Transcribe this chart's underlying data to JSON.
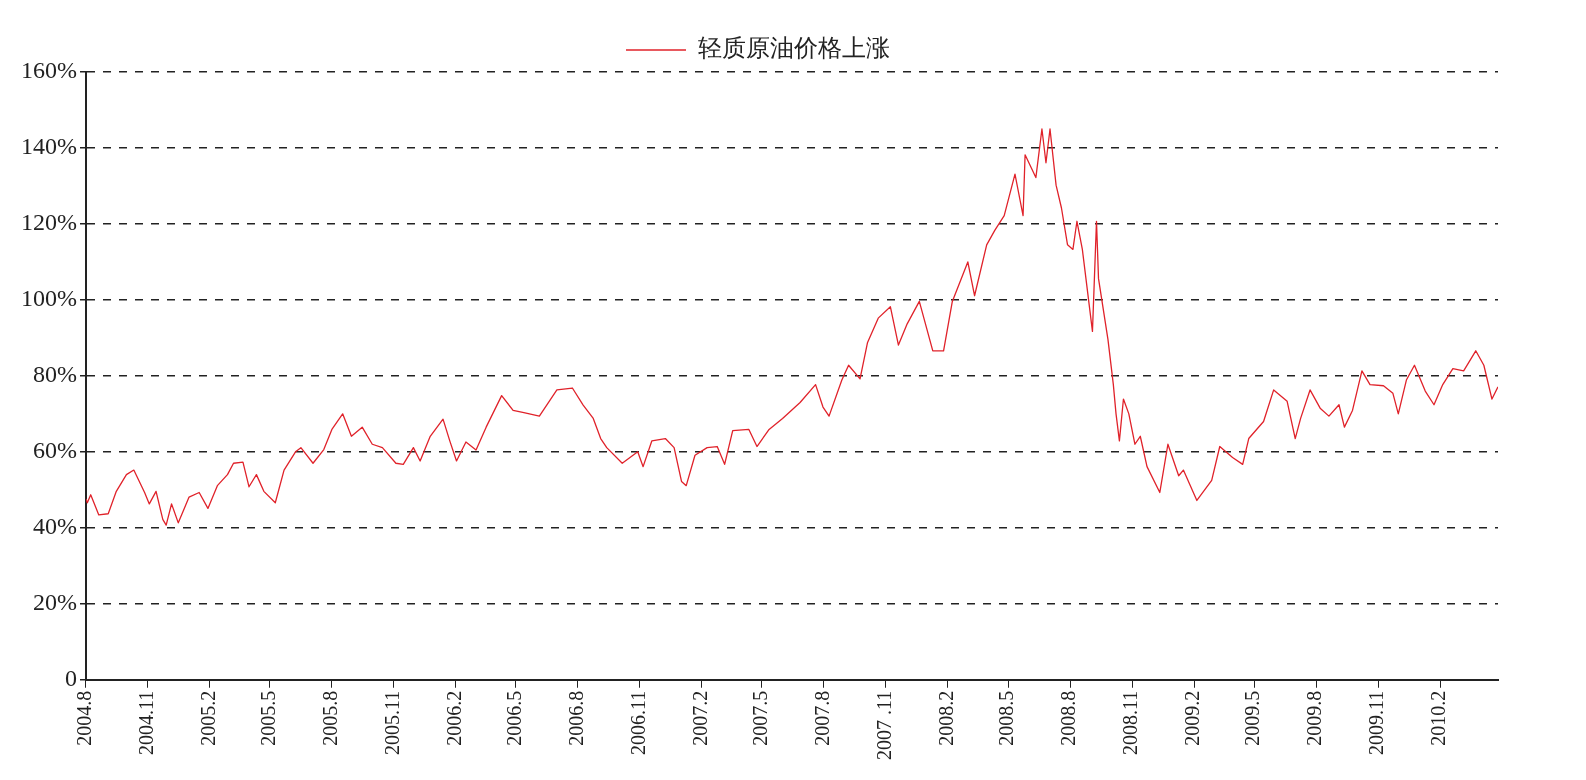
{
  "chart_data": {
    "type": "line",
    "x": [
      "2004-08-01",
      "2004-08-03",
      "2004-08-08",
      "2004-08-20",
      "2004-09-03",
      "2004-09-15",
      "2004-09-30",
      "2004-10-11",
      "2004-10-27",
      "2004-11-03",
      "2004-11-13",
      "2004-11-23",
      "2004-11-28",
      "2004-12-06",
      "2004-12-16",
      "2005-01-01",
      "2005-01-16",
      "2005-01-29",
      "2005-02-12",
      "2005-02-27",
      "2005-03-08",
      "2005-03-22",
      "2005-03-31",
      "2005-04-11",
      "2005-04-22",
      "2005-05-09",
      "2005-05-22",
      "2005-06-08",
      "2005-06-16",
      "2005-07-04",
      "2005-07-20",
      "2005-08-01",
      "2005-08-17",
      "2005-08-30",
      "2005-09-15",
      "2005-09-30",
      "2005-10-15",
      "2005-11-04",
      "2005-11-15",
      "2005-11-30",
      "2005-12-10",
      "2005-12-25",
      "2006-01-13",
      "2006-01-23",
      "2006-02-02",
      "2006-02-16",
      "2006-03-03",
      "2006-03-18",
      "2006-04-10",
      "2006-04-27",
      "2006-05-13",
      "2006-06-05",
      "2006-07-01",
      "2006-07-24",
      "2006-08-09",
      "2006-08-24",
      "2006-09-04",
      "2006-09-13",
      "2006-10-06",
      "2006-10-29",
      "2006-11-06",
      "2006-11-19",
      "2006-12-09",
      "2006-12-22",
      "2007-01-02",
      "2007-01-09",
      "2007-01-22",
      "2007-02-09",
      "2007-02-24",
      "2007-03-07",
      "2007-03-19",
      "2007-04-12",
      "2007-04-24",
      "2007-05-12",
      "2007-06-01",
      "2007-06-27",
      "2007-07-20",
      "2007-07-31",
      "2007-08-09",
      "2007-08-28",
      "2007-09-07",
      "2007-09-24",
      "2007-10-05",
      "2007-10-21",
      "2007-11-08",
      "2007-11-20",
      "2007-12-03",
      "2007-12-21",
      "2008-01-10",
      "2008-01-26",
      "2008-02-08",
      "2008-03-02",
      "2008-03-12",
      "2008-03-30",
      "2008-04-11",
      "2008-04-25",
      "2008-05-11",
      "2008-05-23",
      "2008-05-26",
      "2008-06-11",
      "2008-06-20",
      "2008-06-26",
      "2008-07-02",
      "2008-07-11",
      "2008-07-19",
      "2008-07-28",
      "2008-08-05",
      "2008-08-11",
      "2008-08-19",
      "2008-09-03",
      "2008-09-09",
      "2008-09-12",
      "2008-09-26",
      "2008-10-04",
      "2008-10-08",
      "2008-10-13",
      "2008-10-19",
      "2008-10-27",
      "2008-11-05",
      "2008-11-13",
      "2008-11-23",
      "2008-12-12",
      "2008-12-24",
      "2009-01-09",
      "2009-01-16",
      "2009-02-05",
      "2009-02-27",
      "2009-03-11",
      "2009-03-30",
      "2009-04-14",
      "2009-04-23",
      "2009-05-15",
      "2009-05-30",
      "2009-06-19",
      "2009-07-01",
      "2009-07-09",
      "2009-07-23",
      "2009-08-07",
      "2009-08-20",
      "2009-09-04",
      "2009-09-12",
      "2009-09-24",
      "2009-10-08",
      "2009-10-20",
      "2009-11-09",
      "2009-11-23",
      "2009-12-01",
      "2009-12-13",
      "2009-12-25",
      "2010-01-10",
      "2010-01-23",
      "2010-02-05",
      "2010-02-20",
      "2010-03-08",
      "2010-03-26",
      "2010-04-07",
      "2010-04-19",
      "2010-04-28"
    ],
    "series": [
      {
        "name": "轻质原油价格上涨",
        "color": "#e0222a",
        "values": [
          47.6,
          46.6,
          48.7,
          43.4,
          43.7,
          49.6,
          54.0,
          55.2,
          49.3,
          46.3,
          49.6,
          42.2,
          40.7,
          46.3,
          41.3,
          48.1,
          49.3,
          45.1,
          51.1,
          54.0,
          57.0,
          57.3,
          50.8,
          54.0,
          49.6,
          46.6,
          55.2,
          60.0,
          61.1,
          57.0,
          60.6,
          65.9,
          70.0,
          64.1,
          66.5,
          62.0,
          61.1,
          57.0,
          56.7,
          61.1,
          57.6,
          64.1,
          68.6,
          62.9,
          57.6,
          62.6,
          60.5,
          66.5,
          74.8,
          70.9,
          70.3,
          69.4,
          76.3,
          76.8,
          72.3,
          68.8,
          63.5,
          61.1,
          57.0,
          60.0,
          56.1,
          62.9,
          63.5,
          61.1,
          52.2,
          51.1,
          59.1,
          61.1,
          61.4,
          56.7,
          65.6,
          65.9,
          61.4,
          65.9,
          68.8,
          73.0,
          77.7,
          71.8,
          69.4,
          78.9,
          82.8,
          79.2,
          88.7,
          95.2,
          98.2,
          88.1,
          93.7,
          99.6,
          86.6,
          86.6,
          99.6,
          110.0,
          101.1,
          114.5,
          118.3,
          122.2,
          133.1,
          122.2,
          138.2,
          132.2,
          145.0,
          136.1,
          145.0,
          130.2,
          124.2,
          114.5,
          113.3,
          120.7,
          113.3,
          91.7,
          120.7,
          105.6,
          89.6,
          77.7,
          70.0,
          62.9,
          73.9,
          70.0,
          62.0,
          64.1,
          56.1,
          49.3,
          62.0,
          53.7,
          55.2,
          47.2,
          52.5,
          61.4,
          58.5,
          56.7,
          63.5,
          68.0,
          76.3,
          73.3,
          63.5,
          68.8,
          76.3,
          71.5,
          69.4,
          72.4,
          66.5,
          70.9,
          81.3,
          77.7,
          77.4,
          75.4,
          70.0,
          78.9,
          82.8,
          76.0,
          72.4,
          77.7,
          81.9,
          81.3,
          86.6,
          82.8,
          73.9,
          77.1
        ]
      }
    ],
    "xlim": [
      "2004-08-01",
      "2010-04-28"
    ],
    "xticks": [
      {
        "value": "2004-08-01",
        "label": "2004.8"
      },
      {
        "value": "2004-11-01",
        "label": "2004.11"
      },
      {
        "value": "2005-02-01",
        "label": "2005.2"
      },
      {
        "value": "2005-05-01",
        "label": "2005.5"
      },
      {
        "value": "2005-08-01",
        "label": "2005.8"
      },
      {
        "value": "2005-11-01",
        "label": "2005.11"
      },
      {
        "value": "2006-02-01",
        "label": "2006.2"
      },
      {
        "value": "2006-05-01",
        "label": "2006.5"
      },
      {
        "value": "2006-08-01",
        "label": "2006.8"
      },
      {
        "value": "2006-11-01",
        "label": "2006.11"
      },
      {
        "value": "2007-02-01",
        "label": "2007.2"
      },
      {
        "value": "2007-05-01",
        "label": "2007.5"
      },
      {
        "value": "2007-08-01",
        "label": "2007.8"
      },
      {
        "value": "2007-11-01",
        "label": "2007 .11"
      },
      {
        "value": "2008-02-01",
        "label": "2008.2"
      },
      {
        "value": "2008-05-01",
        "label": "2008.5"
      },
      {
        "value": "2008-08-01",
        "label": "2008.8"
      },
      {
        "value": "2008-11-01",
        "label": "2008.11"
      },
      {
        "value": "2009-02-01",
        "label": "2009.2"
      },
      {
        "value": "2009-05-01",
        "label": "2009.5"
      },
      {
        "value": "2009-08-01",
        "label": "2009.8"
      },
      {
        "value": "2009-11-01",
        "label": "2009.11"
      },
      {
        "value": "2010-02-01",
        "label": "2010.2"
      }
    ],
    "ylim": [
      0,
      160
    ],
    "yticks": [
      0,
      {
        "value": 20,
        "label": "20%"
      },
      {
        "value": 40,
        "label": "40%"
      },
      {
        "value": 60,
        "label": "60%"
      },
      {
        "value": 80,
        "label": "80%"
      },
      {
        "value": 100,
        "label": "100%"
      },
      {
        "value": 120,
        "label": "120%"
      },
      {
        "value": 140,
        "label": "140%"
      },
      {
        "value": 160,
        "label": "160%"
      }
    ],
    "grid": "y",
    "line_style": "solid",
    "marker": "none",
    "legend": "top"
  }
}
